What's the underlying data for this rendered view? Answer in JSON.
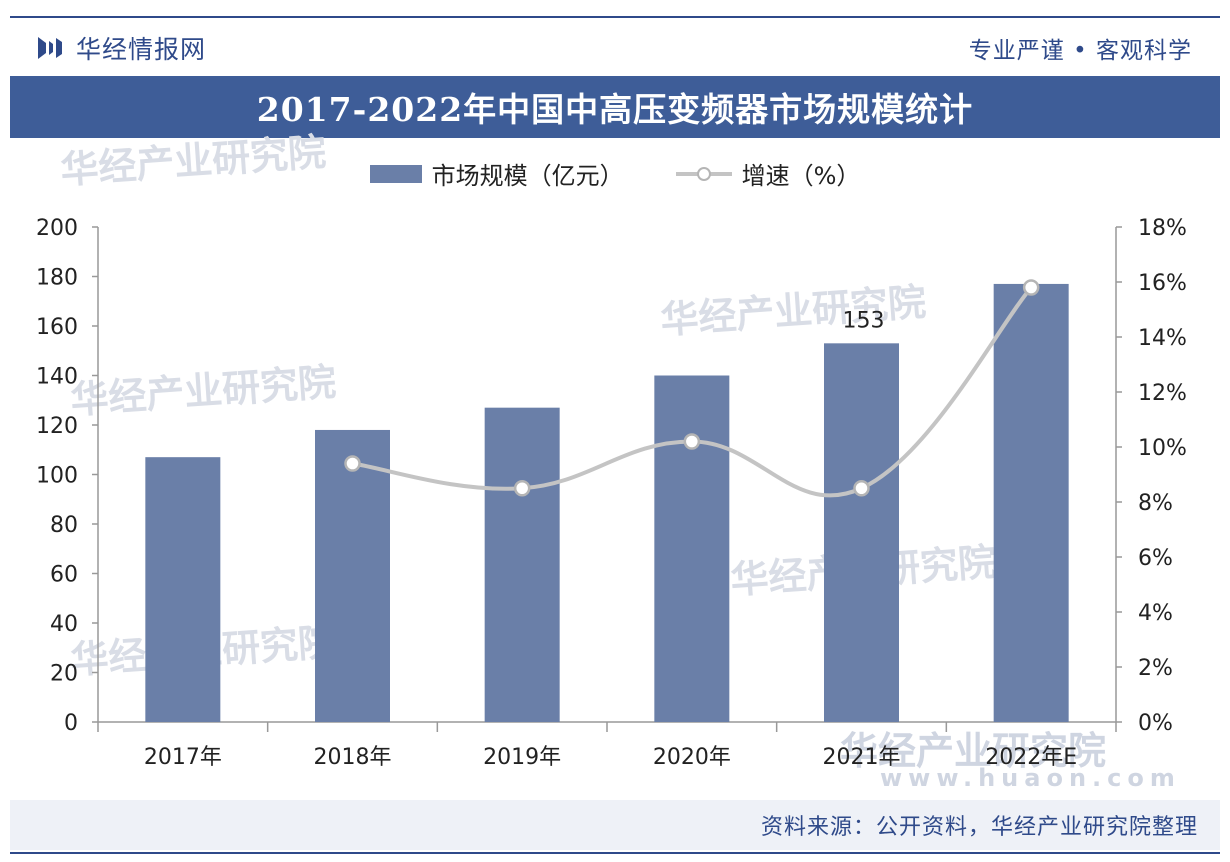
{
  "header": {
    "brand": "华经情报网",
    "slogan": "专业严谨 • 客观科学"
  },
  "footer": {
    "source": "资料来源：公开资料，华经产业研究院整理"
  },
  "watermark": {
    "text": "华经产业研究院",
    "url": "www.huaon.com"
  },
  "colors": {
    "brand": "#2f4a8a",
    "bar": "#6a7fa8",
    "line": "#c4c4c4"
  },
  "chart_data": {
    "type": "bar",
    "title": "2017-2022年中国中高压变频器市场规模统计",
    "categories": [
      "2017年",
      "2018年",
      "2019年",
      "2020年",
      "2021年",
      "2022年E"
    ],
    "series": [
      {
        "name": "市场规模（亿元）",
        "type": "bar",
        "axis": "left",
        "values": [
          107,
          118,
          127,
          140,
          153,
          177
        ]
      },
      {
        "name": "增速（%）",
        "type": "line",
        "axis": "right",
        "values": [
          null,
          9.4,
          8.5,
          10.2,
          8.5,
          15.8
        ]
      }
    ],
    "data_labels": [
      {
        "category": "2021年",
        "text": "153"
      }
    ],
    "y_left": {
      "min": 0,
      "max": 200,
      "ticks": [
        "0",
        "20",
        "40",
        "60",
        "80",
        "100",
        "120",
        "140",
        "160",
        "180",
        "200"
      ]
    },
    "y_right": {
      "min": 0,
      "max": 18,
      "ticks": [
        "0%",
        "2%",
        "4%",
        "6%",
        "8%",
        "10%",
        "12%",
        "14%",
        "16%",
        "18%"
      ]
    },
    "legend_position": "top-center",
    "grid": false
  }
}
